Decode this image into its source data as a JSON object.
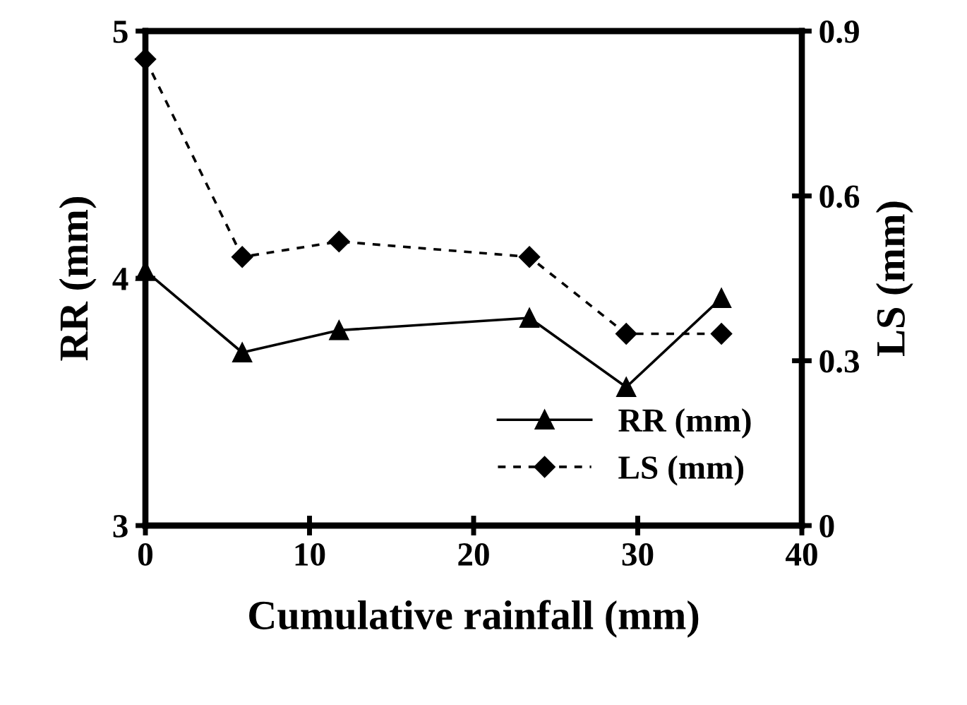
{
  "chart_data": {
    "type": "line",
    "xlabel": "Cumulative rainfall (mm)",
    "ylabel": "RR (mm)",
    "y2label": "LS (mm)",
    "x": [
      0,
      5.9,
      11.8,
      23.4,
      29.3,
      35.1
    ],
    "series": [
      {
        "name": "RR (mm)",
        "color": "#000000",
        "values": [
          4.03,
          3.7,
          3.79,
          3.84,
          3.56,
          3.92
        ],
        "marker": "triangle",
        "line_style": "solid"
      },
      {
        "name": "LS (mm)",
        "color": "#000000",
        "values": [
          0.849,
          0.489,
          0.517,
          0.489,
          0.349,
          0.349
        ],
        "marker": "diamond",
        "line_style": "dashed",
        "axis": "y2"
      }
    ],
    "xlim": [
      0,
      40
    ],
    "xticks": [
      0,
      10,
      20,
      30,
      40
    ],
    "ylim": [
      3,
      5
    ],
    "yticks": [
      3,
      4,
      5
    ],
    "y2lim": [
      0,
      0.9
    ],
    "y2ticks": [
      0,
      0.3,
      0.6,
      0.9
    ],
    "legend": "bottom right",
    "grid": false
  }
}
